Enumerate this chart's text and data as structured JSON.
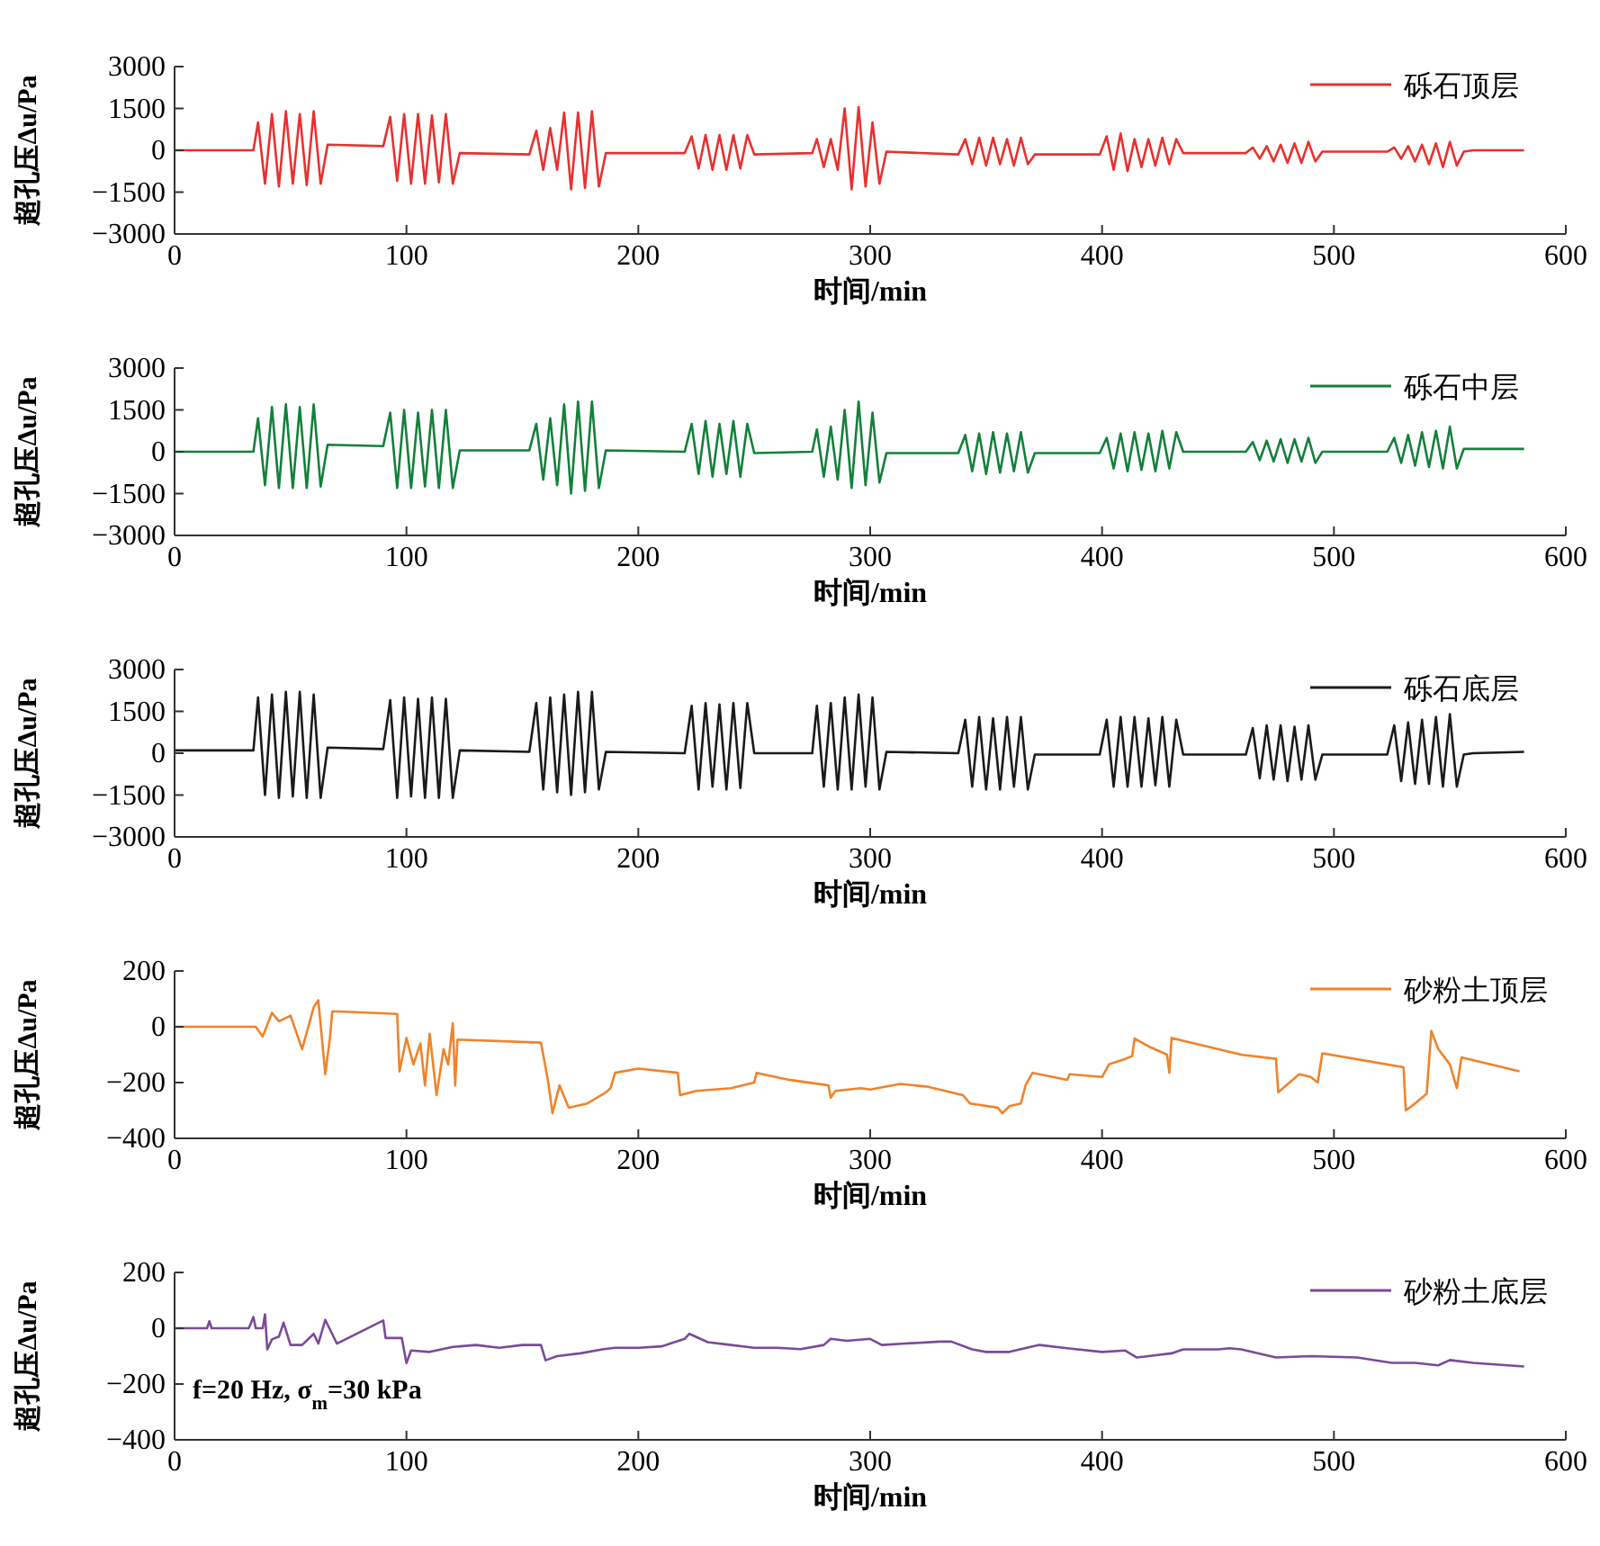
{
  "chart_data": [
    {
      "type": "line",
      "xlabel": "时间/min",
      "ylabel": "超孔压Δ$^{}$u/Pa",
      "xlim": [
        0,
        600
      ],
      "xticks": [
        0,
        100,
        200,
        300,
        400,
        500,
        600
      ],
      "ylim": [
        -3000,
        3000
      ],
      "yticks": [
        -3000,
        -1500,
        0,
        1500,
        3000
      ],
      "legend": "top right",
      "x": [
        0,
        30,
        34,
        36,
        39,
        42,
        45,
        48,
        51,
        54,
        57,
        60,
        63,
        66,
        90,
        93,
        96,
        99,
        102,
        105,
        108,
        111,
        114,
        117,
        120,
        123,
        153,
        156,
        159,
        162,
        165,
        168,
        171,
        174,
        177,
        180,
        183,
        186,
        220,
        223,
        226,
        229,
        232,
        235,
        238,
        241,
        244,
        247,
        250,
        275,
        277,
        280,
        283,
        286,
        289,
        292,
        295,
        298,
        301,
        304,
        307,
        338,
        341,
        344,
        347,
        350,
        353,
        356,
        359,
        362,
        365,
        368,
        371,
        399,
        402,
        405,
        408,
        411,
        414,
        417,
        420,
        423,
        426,
        429,
        432,
        435,
        462,
        465,
        468,
        471,
        474,
        477,
        480,
        483,
        486,
        489,
        492,
        495,
        523,
        526,
        529,
        532,
        535,
        538,
        541,
        544,
        547,
        550,
        553,
        556,
        560,
        582
      ],
      "series": [
        {
          "name": "砾石顶层",
          "color": "#e8312f",
          "values": [
            0,
            0,
            0,
            1000,
            -1200,
            1300,
            -1300,
            1400,
            -1200,
            1300,
            -1250,
            1400,
            -1200,
            200,
            150,
            1200,
            -1100,
            1300,
            -1200,
            1300,
            -1200,
            1250,
            -1150,
            1300,
            -1200,
            -100,
            -150,
            700,
            -700,
            800,
            -700,
            1350,
            -1400,
            1350,
            -1350,
            1400,
            -1300,
            -100,
            -100,
            500,
            -650,
            550,
            -700,
            550,
            -700,
            550,
            -650,
            550,
            -150,
            -100,
            400,
            -600,
            400,
            -700,
            1500,
            -1400,
            1550,
            -1300,
            1000,
            -1200,
            -50,
            -150,
            400,
            -500,
            450,
            -550,
            450,
            -500,
            400,
            -550,
            450,
            -500,
            -150,
            -150,
            500,
            -700,
            600,
            -750,
            400,
            -600,
            400,
            -550,
            450,
            -500,
            400,
            -100,
            -100,
            100,
            -300,
            150,
            -400,
            200,
            -450,
            250,
            -450,
            300,
            -400,
            -50,
            -50,
            100,
            -300,
            150,
            -400,
            200,
            -500,
            250,
            -600,
            300,
            -550,
            -50,
            0,
            0
          ]
        }
      ]
    },
    {
      "type": "line",
      "xlabel": "时间/min",
      "ylabel": "超孔压Δ$^{}$u/Pa",
      "xlim": [
        0,
        600
      ],
      "xticks": [
        0,
        100,
        200,
        300,
        400,
        500,
        600
      ],
      "ylim": [
        -3000,
        3000
      ],
      "yticks": [
        -3000,
        -1500,
        0,
        1500,
        3000
      ],
      "legend": "top right",
      "x": [
        0,
        30,
        34,
        36,
        39,
        42,
        45,
        48,
        51,
        54,
        57,
        60,
        63,
        66,
        90,
        93,
        96,
        99,
        102,
        105,
        108,
        111,
        114,
        117,
        120,
        123,
        153,
        156,
        159,
        162,
        165,
        168,
        171,
        174,
        177,
        180,
        183,
        186,
        220,
        223,
        226,
        229,
        232,
        235,
        238,
        241,
        244,
        247,
        250,
        275,
        277,
        280,
        283,
        286,
        289,
        292,
        295,
        298,
        301,
        304,
        307,
        338,
        341,
        344,
        347,
        350,
        353,
        356,
        359,
        362,
        365,
        368,
        371,
        399,
        402,
        405,
        408,
        411,
        414,
        417,
        420,
        423,
        426,
        429,
        432,
        435,
        462,
        465,
        468,
        471,
        474,
        477,
        480,
        483,
        486,
        489,
        492,
        495,
        523,
        526,
        529,
        532,
        535,
        538,
        541,
        544,
        547,
        550,
        553,
        556,
        560,
        582
      ],
      "series": [
        {
          "name": "砾石中层",
          "color": "#13803a",
          "values": [
            0,
            0,
            0,
            1200,
            -1200,
            1600,
            -1300,
            1700,
            -1300,
            1600,
            -1300,
            1700,
            -1250,
            250,
            200,
            1400,
            -1300,
            1500,
            -1300,
            1400,
            -1250,
            1500,
            -1300,
            1500,
            -1300,
            50,
            50,
            1000,
            -1000,
            1200,
            -1200,
            1700,
            -1500,
            1800,
            -1400,
            1800,
            -1300,
            50,
            0,
            1000,
            -800,
            1100,
            -900,
            1000,
            -800,
            1100,
            -900,
            1000,
            -50,
            0,
            800,
            -900,
            900,
            -1000,
            1500,
            -1300,
            1800,
            -1200,
            1400,
            -1100,
            -50,
            -50,
            600,
            -700,
            650,
            -800,
            700,
            -750,
            650,
            -700,
            700,
            -750,
            -50,
            -50,
            500,
            -600,
            650,
            -700,
            700,
            -650,
            650,
            -700,
            750,
            -600,
            700,
            0,
            0,
            350,
            -300,
            400,
            -350,
            450,
            -400,
            450,
            -350,
            500,
            -400,
            0,
            0,
            500,
            -400,
            600,
            -500,
            700,
            -550,
            750,
            -600,
            900,
            -600,
            100,
            100,
            100
          ]
        }
      ]
    },
    {
      "type": "line",
      "xlabel": "时间/min",
      "ylabel": "超孔压Δ$^{}$u/Pa",
      "xlim": [
        0,
        600
      ],
      "xticks": [
        0,
        100,
        200,
        300,
        400,
        500,
        600
      ],
      "ylim": [
        -3000,
        3000
      ],
      "yticks": [
        -3000,
        -1500,
        0,
        1500,
        3000
      ],
      "legend": "top right",
      "x": [
        0,
        30,
        34,
        36,
        39,
        42,
        45,
        48,
        51,
        54,
        57,
        60,
        63,
        66,
        90,
        93,
        96,
        99,
        102,
        105,
        108,
        111,
        114,
        117,
        120,
        123,
        153,
        156,
        159,
        162,
        165,
        168,
        171,
        174,
        177,
        180,
        183,
        186,
        220,
        223,
        226,
        229,
        232,
        235,
        238,
        241,
        244,
        247,
        250,
        275,
        277,
        280,
        283,
        286,
        289,
        292,
        295,
        298,
        301,
        304,
        307,
        338,
        341,
        344,
        347,
        350,
        353,
        356,
        359,
        362,
        365,
        368,
        371,
        399,
        402,
        405,
        408,
        411,
        414,
        417,
        420,
        423,
        426,
        429,
        432,
        435,
        462,
        465,
        468,
        471,
        474,
        477,
        480,
        483,
        486,
        489,
        492,
        495,
        523,
        526,
        529,
        532,
        535,
        538,
        541,
        544,
        547,
        550,
        553,
        556,
        560,
        582
      ],
      "series": [
        {
          "name": "砾石底层",
          "color": "#1a1a1a",
          "values": [
            100,
            100,
            100,
            2000,
            -1500,
            2100,
            -1600,
            2200,
            -1550,
            2200,
            -1600,
            2100,
            -1600,
            200,
            150,
            1900,
            -1600,
            2000,
            -1550,
            1950,
            -1600,
            2000,
            -1600,
            1950,
            -1600,
            100,
            50,
            1800,
            -1300,
            2000,
            -1400,
            2100,
            -1500,
            2200,
            -1400,
            2200,
            -1300,
            50,
            0,
            1700,
            -1300,
            1800,
            -1200,
            1750,
            -1300,
            1800,
            -1250,
            1800,
            0,
            0,
            1700,
            -1200,
            1800,
            -1300,
            2000,
            -1300,
            2100,
            -1200,
            2000,
            -1300,
            50,
            0,
            1200,
            -1200,
            1300,
            -1300,
            1250,
            -1300,
            1300,
            -1200,
            1300,
            -1300,
            -50,
            -50,
            1200,
            -1200,
            1300,
            -1200,
            1300,
            -1200,
            1250,
            -1150,
            1300,
            -1200,
            1200,
            -50,
            -50,
            900,
            -900,
            1000,
            -950,
            1000,
            -1000,
            950,
            -950,
            1000,
            -950,
            -50,
            -50,
            1000,
            -1000,
            1100,
            -1100,
            1200,
            -1100,
            1300,
            -1200,
            1400,
            -1200,
            -50,
            0,
            50
          ]
        }
      ]
    },
    {
      "type": "line",
      "xlabel": "时间/min",
      "ylabel": "超孔压Δ$^{}$u/Pa",
      "xlim": [
        0,
        600
      ],
      "xticks": [
        0,
        100,
        200,
        300,
        400,
        500,
        600
      ],
      "ylim": [
        -400,
        200
      ],
      "yticks": [
        -400,
        -200,
        0,
        200
      ],
      "legend": "top right",
      "x": [
        0,
        35,
        38,
        42,
        45,
        50,
        55,
        60,
        62,
        65,
        67,
        68,
        71,
        96,
        97,
        100,
        103,
        106,
        108,
        110,
        113,
        116,
        118,
        120,
        121,
        122,
        158,
        161,
        163,
        166,
        170,
        178,
        186,
        188,
        190,
        200,
        217,
        218,
        225,
        240,
        250,
        251,
        265,
        282,
        283,
        285,
        296,
        300,
        313,
        325,
        340,
        343,
        355,
        357,
        360,
        365,
        367,
        370,
        385,
        386,
        400,
        403,
        410,
        413,
        414,
        420,
        428,
        429,
        430,
        460,
        475,
        476,
        485,
        490,
        493,
        495,
        530,
        531,
        535,
        540,
        542,
        545,
        550,
        553,
        555,
        580
      ],
      "series": [
        {
          "name": "砂粉土顶层",
          "color": "#f0832a",
          "values": [
            0,
            0,
            -35,
            50,
            20,
            40,
            -80,
            70,
            95,
            -170,
            -40,
            55,
            55,
            46,
            -160,
            -40,
            -135,
            -60,
            -210,
            -25,
            -245,
            -80,
            -135,
            13,
            -210,
            -46,
            -57,
            -190,
            -310,
            -210,
            -290,
            -275,
            -235,
            -220,
            -165,
            -150,
            -165,
            -245,
            -230,
            -220,
            -200,
            -165,
            -190,
            -210,
            -255,
            -230,
            -220,
            -225,
            -205,
            -215,
            -245,
            -275,
            -290,
            -310,
            -285,
            -275,
            -210,
            -165,
            -190,
            -170,
            -180,
            -135,
            -115,
            -105,
            -42,
            -70,
            -100,
            -165,
            -40,
            -100,
            -115,
            -235,
            -170,
            -180,
            -200,
            -95,
            -145,
            -300,
            -275,
            -240,
            -15,
            -80,
            -135,
            -220,
            -110,
            -160
          ]
        }
      ]
    },
    {
      "type": "line",
      "xlabel": "时间/min",
      "ylabel": "超孔压Δ$^{}$u/Pa",
      "xlim": [
        0,
        600
      ],
      "xticks": [
        0,
        100,
        200,
        300,
        400,
        500,
        600
      ],
      "ylim": [
        -400,
        200
      ],
      "yticks": [
        -400,
        -200,
        0,
        200
      ],
      "legend": "top right",
      "annotations": [
        "f=20 Hz, σ$_{m}$=30 kPa"
      ],
      "x": [
        0,
        14,
        15,
        16,
        32,
        33,
        34,
        35,
        38,
        39,
        40,
        42,
        45,
        47,
        50,
        55,
        60,
        62,
        65,
        70,
        90,
        91,
        98,
        100,
        102,
        110,
        120,
        130,
        140,
        150,
        158,
        160,
        165,
        175,
        185,
        190,
        200,
        210,
        220,
        222,
        230,
        240,
        250,
        260,
        270,
        280,
        283,
        290,
        300,
        305,
        315,
        330,
        335,
        344,
        350,
        360,
        373,
        385,
        400,
        410,
        415,
        430,
        435,
        450,
        455,
        460,
        475,
        490,
        510,
        525,
        535,
        545,
        550,
        560,
        575,
        582
      ],
      "series": [
        {
          "name": "砂粉土底层",
          "color": "#7a4a9a",
          "values": [
            0,
            0,
            25,
            0,
            0,
            20,
            40,
            0,
            0,
            50,
            -76,
            -40,
            -30,
            20,
            -60,
            -60,
            -20,
            -55,
            30,
            -55,
            28,
            -35,
            -35,
            -125,
            -80,
            -85,
            -67,
            -60,
            -70,
            -60,
            -60,
            -115,
            -100,
            -90,
            -75,
            -70,
            -70,
            -65,
            -38,
            -20,
            -50,
            -60,
            -70,
            -70,
            -75,
            -60,
            -38,
            -45,
            -38,
            -60,
            -55,
            -48,
            -48,
            -76,
            -85,
            -85,
            -60,
            -72,
            -85,
            -80,
            -105,
            -90,
            -76,
            -76,
            -72,
            -76,
            -105,
            -100,
            -105,
            -124,
            -124,
            -133,
            -114,
            -124,
            -133,
            -137
          ]
        }
      ]
    }
  ]
}
